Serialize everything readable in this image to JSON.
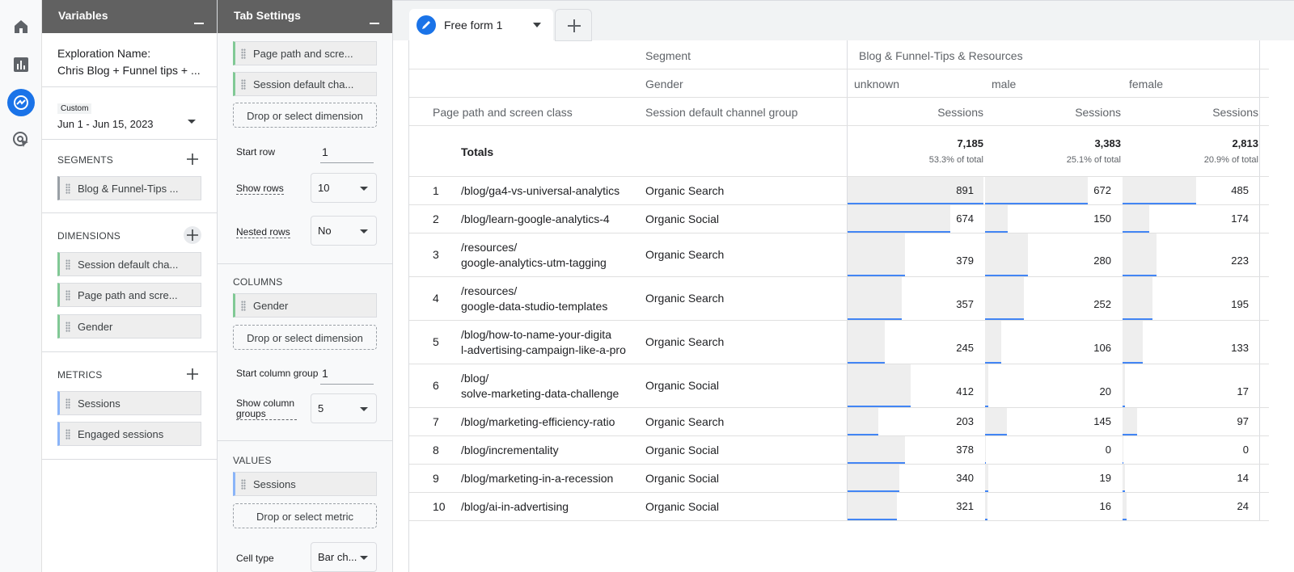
{
  "variables_panel": {
    "title": "Variables",
    "exploration_label": "Exploration Name:",
    "exploration_name": "Chris Blog + Funnel tips + ...",
    "date_label": "Custom",
    "date_range": "Jun 1 - Jun 15, 2023",
    "segments": {
      "heading": "SEGMENTS",
      "items": [
        "Blog & Funnel-Tips ..."
      ]
    },
    "dimensions": {
      "heading": "DIMENSIONS",
      "items": [
        "Session default cha...",
        "Page path and scre...",
        "Gender"
      ]
    },
    "metrics": {
      "heading": "METRICS",
      "items": [
        "Sessions",
        "Engaged sessions"
      ]
    }
  },
  "tab_settings": {
    "title": "Tab Settings",
    "rows_items": [
      "Page path and scre...",
      "Session default cha..."
    ],
    "rows_drop": "Drop or select dimension",
    "start_row": {
      "label": "Start row",
      "value": "1"
    },
    "show_rows": {
      "label": "Show rows",
      "value": "10"
    },
    "nested_rows": {
      "label": "Nested rows",
      "value": "No"
    },
    "columns": {
      "heading": "COLUMNS",
      "items": [
        "Gender"
      ],
      "drop": "Drop or select dimension"
    },
    "start_column_group": {
      "label": "Start column group",
      "value": "1"
    },
    "show_column_groups": {
      "label": "Show column groups",
      "value": "5"
    },
    "values": {
      "heading": "VALUES",
      "items": [
        "Sessions"
      ],
      "drop": "Drop or select metric"
    },
    "cell_type": {
      "label": "Cell type",
      "value": "Bar ch..."
    }
  },
  "tab": {
    "name": "Free form 1"
  },
  "table": {
    "segment_label": "Segment",
    "segment_name": "Blog & Funnel-Tips & Resources",
    "gender_label": "Gender",
    "genders": [
      "unknown",
      "male",
      "female"
    ],
    "row_headers": [
      "Page path and screen class",
      "Session default channel group"
    ],
    "metric_headers": [
      "Sessions",
      "Sessions",
      "Sessions"
    ],
    "totals": {
      "label": "Totals",
      "values": [
        7185,
        3383,
        2813
      ],
      "value_labels": [
        "7,185",
        "3,383",
        "2,813"
      ],
      "percent_labels": [
        "53.3% of total",
        "25.1% of total",
        "20.9% of total"
      ]
    },
    "rows": [
      {
        "rank": 1,
        "page": [
          "/blog/ga4-vs-universal-analytics"
        ],
        "channel": "Organic Search",
        "sessions": [
          891,
          672,
          485
        ]
      },
      {
        "rank": 2,
        "page": [
          "/blog/learn-google-analytics-4"
        ],
        "channel": "Organic Social",
        "sessions": [
          674,
          150,
          174
        ]
      },
      {
        "rank": 3,
        "page": [
          "/resources/",
          "google-analytics-utm-tagging"
        ],
        "channel": "Organic Search",
        "sessions": [
          379,
          280,
          223
        ]
      },
      {
        "rank": 4,
        "page": [
          "/resources/",
          "google-data-studio-templates"
        ],
        "channel": "Organic Search",
        "sessions": [
          357,
          252,
          195
        ]
      },
      {
        "rank": 5,
        "page": [
          "/blog/how-to-name-your-digita",
          "l-advertising-campaign-like-a-pro"
        ],
        "channel": "Organic Search",
        "sessions": [
          245,
          106,
          133
        ]
      },
      {
        "rank": 6,
        "page": [
          "/blog/",
          "solve-marketing-data-challenge"
        ],
        "channel": "Organic Social",
        "sessions": [
          412,
          20,
          17
        ]
      },
      {
        "rank": 7,
        "page": [
          "/blog/marketing-efficiency-ratio"
        ],
        "channel": "Organic Search",
        "sessions": [
          203,
          145,
          97
        ]
      },
      {
        "rank": 8,
        "page": [
          "/blog/incrementality"
        ],
        "channel": "Organic Social",
        "sessions": [
          378,
          0,
          0
        ]
      },
      {
        "rank": 9,
        "page": [
          "/blog/marketing-in-a-recession"
        ],
        "channel": "Organic Social",
        "sessions": [
          340,
          19,
          14
        ]
      },
      {
        "rank": 10,
        "page": [
          "/blog/ai-in-advertising"
        ],
        "channel": "Organic Social",
        "sessions": [
          321,
          16,
          24
        ]
      }
    ]
  }
}
